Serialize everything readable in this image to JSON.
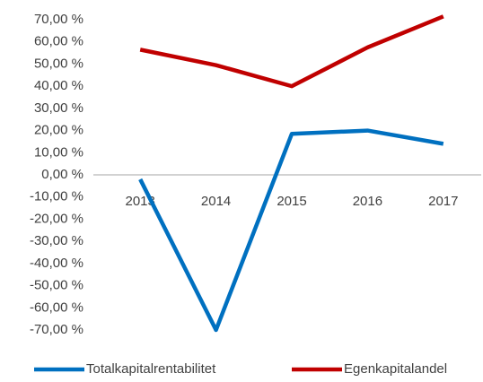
{
  "chart_data": {
    "type": "line",
    "categories": [
      "2013",
      "2014",
      "2015",
      "2016",
      "2017"
    ],
    "series": [
      {
        "name": "Totalkapitalrentabilitet",
        "color": "#0070c0",
        "values": [
          -2,
          -70,
          18.5,
          20,
          14
        ]
      },
      {
        "name": "Egenkapitalandel",
        "color": "#c00000",
        "values": [
          56.5,
          49.5,
          40,
          57.5,
          71.5
        ]
      }
    ],
    "ylim": [
      -70,
      70
    ],
    "yticks": [
      {
        "value": 70,
        "label": "70,00 %"
      },
      {
        "value": 60,
        "label": "60,00 %"
      },
      {
        "value": 50,
        "label": "50,00 %"
      },
      {
        "value": 40,
        "label": "40,00 %"
      },
      {
        "value": 30,
        "label": "30,00 %"
      },
      {
        "value": 20,
        "label": "20,00 %"
      },
      {
        "value": 10,
        "label": "10,00 %"
      },
      {
        "value": 0,
        "label": "0,00 %"
      },
      {
        "value": -10,
        "label": "-10,00 %"
      },
      {
        "value": -20,
        "label": "-20,00 %"
      },
      {
        "value": -30,
        "label": "-30,00 %"
      },
      {
        "value": -40,
        "label": "-40,00 %"
      },
      {
        "value": -50,
        "label": "-50,00 %"
      },
      {
        "value": -60,
        "label": "-60,00 %"
      },
      {
        "value": -70,
        "label": "-70,00 %"
      }
    ],
    "grid": false,
    "legend": "bottom"
  }
}
